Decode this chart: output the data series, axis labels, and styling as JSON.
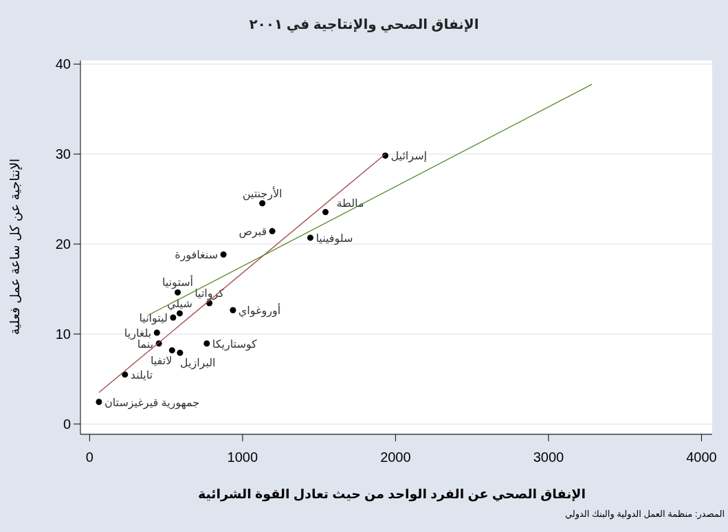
{
  "chart_data": {
    "type": "scatter",
    "title": "الإنفاق الصحي والإنتاجية  في ٢٠٠١",
    "xlabel": "الإنفاق الصحي عن الفرد الواحد من حيث تعادل القوة الشرائية",
    "ylabel": "الإنتاجية عن كل ساعة عمل فعلية",
    "annotations": [
      "المصدر:  منظمة العمل الدولية والبنك الدولي"
    ],
    "xlim": [
      -60,
      4070
    ],
    "ylim": [
      -1,
      40.4
    ],
    "xticks": [
      0,
      1000,
      2000,
      3000,
      4000
    ],
    "yticks": [
      0,
      10,
      20,
      30,
      40
    ],
    "grid": "y",
    "series": [
      {
        "type": "scatter",
        "marker": "circle",
        "color": "#000000",
        "x": [
          1933,
          1129,
          1542,
          1194,
          1443,
          875,
          576,
          783,
          937,
          546,
          589,
          539,
          440,
          453,
          766,
          591,
          231,
          61
        ],
        "values": [
          29.83,
          24.53,
          23.55,
          21.43,
          20.7,
          18.84,
          14.63,
          13.44,
          12.65,
          11.83,
          12.3,
          8.19,
          10.15,
          8.95,
          8.95,
          7.92,
          5.5,
          2.46
        ],
        "value_labels": [
          "إسرائيل",
          "الأرجنتين",
          "مالطة",
          "قبرص",
          "سلوفينيا",
          "سنغافورة",
          "أستونيا",
          "كرواتيا",
          "أوروغواي",
          "ليتوانيا",
          "شيلي",
          "لاتفيا",
          "بلغاريا",
          "بنما",
          "كوستاريكا",
          "البرازيل",
          "تايلند",
          "جمهورية قيرغيزستان"
        ]
      },
      {
        "type": "line",
        "color": "#a0454a",
        "x": [
          61,
          1933
        ],
        "values": [
          3.5,
          30.0
        ]
      },
      {
        "type": "line",
        "color": "#5a8a2e",
        "x": [
          382,
          3284
        ],
        "values": [
          12.08,
          37.75
        ]
      }
    ]
  }
}
